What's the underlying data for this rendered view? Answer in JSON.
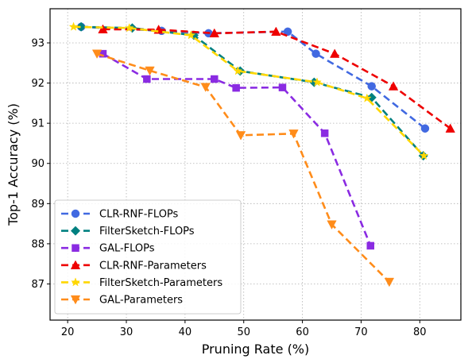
{
  "chart_data": {
    "type": "line",
    "title": "",
    "xlabel": "Pruning Rate (%)",
    "ylabel": "Top-1 Accuracy (%)",
    "xlim": [
      17,
      87
    ],
    "ylim": [
      86.1,
      93.85
    ],
    "xticks": [
      20,
      30,
      40,
      50,
      60,
      70,
      80
    ],
    "yticks": [
      87,
      88,
      89,
      90,
      91,
      92,
      93
    ],
    "grid": true,
    "legend_position": "lower-left",
    "series": [
      {
        "name": "CLR-RNF-FLOPs",
        "color": "#4169e1",
        "marker": "circle",
        "x": [
          22.3,
          36.0,
          44.0,
          57.5,
          62.3,
          71.8,
          80.9
        ],
        "y": [
          93.4,
          93.3,
          93.24,
          93.28,
          92.73,
          91.92,
          90.87
        ]
      },
      {
        "name": "FilterSketch-FLOPs",
        "color": "#008080",
        "marker": "diamond",
        "x": [
          22.3,
          31.0,
          41.5,
          49.4,
          62.0,
          71.8,
          80.6
        ],
        "y": [
          93.4,
          93.37,
          93.19,
          92.3,
          92.02,
          91.64,
          90.19
        ]
      },
      {
        "name": "GAL-FLOPs",
        "color": "#8a2be2",
        "marker": "square",
        "x": [
          26.0,
          33.5,
          45.0,
          48.7,
          56.6,
          63.8,
          71.6
        ],
        "y": [
          92.73,
          92.1,
          92.1,
          91.88,
          91.89,
          90.75,
          87.95
        ]
      },
      {
        "name": "CLR-RNF-Parameters",
        "color": "#ee0000",
        "marker": "triangle-up",
        "x": [
          26.0,
          35.5,
          45.0,
          55.5,
          65.5,
          75.5,
          85.2
        ],
        "y": [
          93.34,
          93.33,
          93.24,
          93.28,
          92.73,
          91.92,
          90.87
        ]
      },
      {
        "name": "FilterSketch-Parameters",
        "color": "#ffd700",
        "marker": "star",
        "x": [
          21.0,
          30.5,
          41.0,
          49.0,
          62.5,
          71.0,
          80.7
        ],
        "y": [
          93.4,
          93.37,
          93.19,
          92.3,
          92.02,
          91.62,
          90.19
        ]
      },
      {
        "name": "GAL-Parameters",
        "color": "#ff8c1a",
        "marker": "triangle-down",
        "x": [
          25.0,
          34.0,
          43.5,
          49.5,
          58.5,
          65.0,
          74.8
        ],
        "y": [
          92.73,
          92.31,
          91.9,
          90.7,
          90.74,
          88.48,
          87.05
        ]
      }
    ]
  }
}
